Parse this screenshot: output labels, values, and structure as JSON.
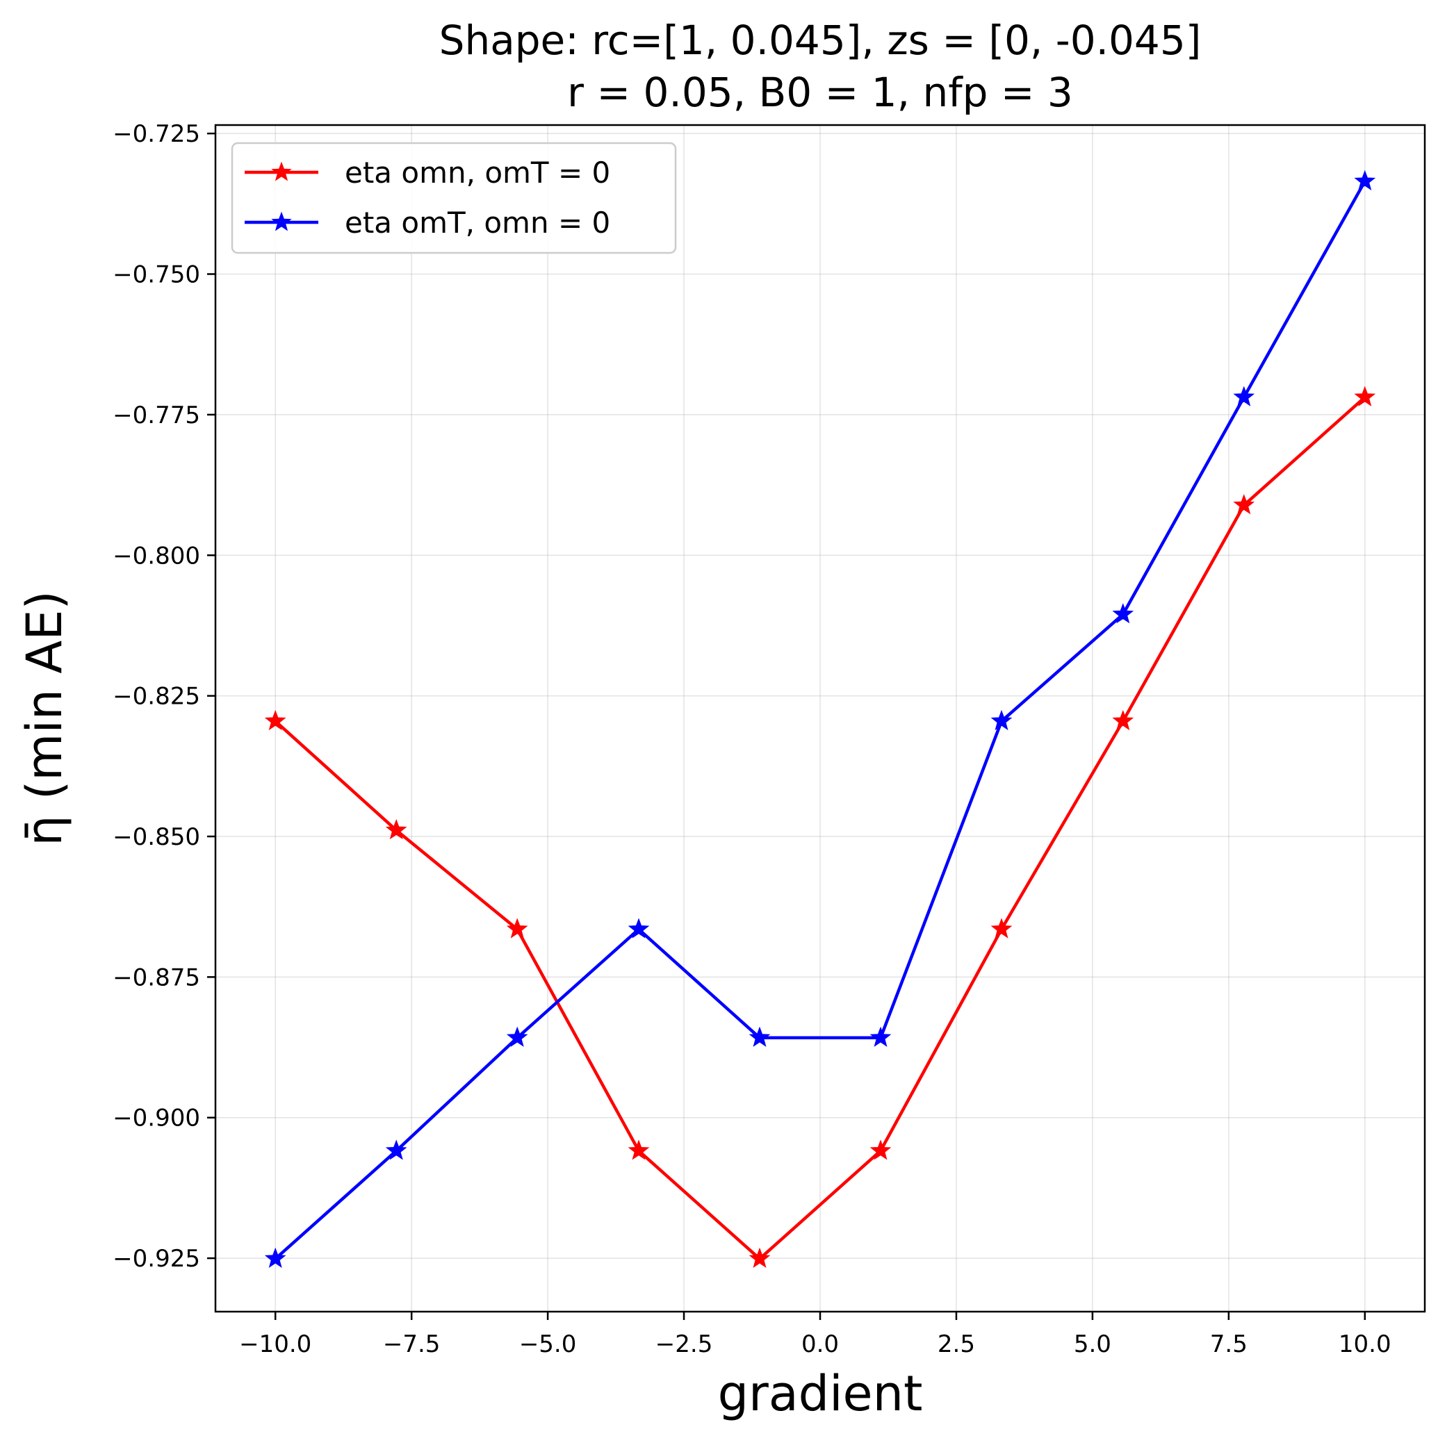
{
  "chart_data": {
    "type": "line",
    "title": [
      "Shape: rc=[1, 0.045], zs = [0, -0.045]",
      "r = 0.05, B0 = 1, nfp = 3"
    ],
    "xlabel": "gradient",
    "ylabel": "η̄ (min AE)",
    "xlim": [
      -11.1,
      11.1
    ],
    "ylim": [
      -0.9345,
      -0.7235
    ],
    "xticks": [
      -10.0,
      -7.5,
      -5.0,
      -2.5,
      0.0,
      2.5,
      5.0,
      7.5,
      10.0
    ],
    "xtick_labels": [
      "−10.0",
      "−7.5",
      "−5.0",
      "−2.5",
      "0.0",
      "2.5",
      "5.0",
      "7.5",
      "10.0"
    ],
    "yticks": [
      -0.725,
      -0.75,
      -0.775,
      -0.8,
      -0.825,
      -0.85,
      -0.875,
      -0.9,
      -0.925
    ],
    "ytick_labels": [
      "−0.725",
      "−0.750",
      "−0.775",
      "−0.800",
      "−0.825",
      "−0.850",
      "−0.875",
      "−0.900",
      "−0.925"
    ],
    "grid": true,
    "legend_position": "top-left",
    "x": [
      -10.0,
      -7.78,
      -5.56,
      -3.33,
      -1.11,
      1.11,
      3.33,
      5.56,
      7.78,
      10.0
    ],
    "series": [
      {
        "name": "eta omn, omT = 0",
        "color": "#ff0000",
        "marker": "star",
        "values": [
          -0.8295,
          -0.8489,
          -0.8665,
          -0.9059,
          -0.9251,
          -0.9059,
          -0.8665,
          -0.8295,
          -0.7911,
          -0.7719
        ]
      },
      {
        "name": "eta omT, omn = 0",
        "color": "#0000ff",
        "marker": "star",
        "values": [
          -0.9251,
          -0.9059,
          -0.8858,
          -0.8665,
          -0.8858,
          -0.8858,
          -0.8295,
          -0.8105,
          -0.7719,
          -0.7335
        ]
      }
    ]
  }
}
